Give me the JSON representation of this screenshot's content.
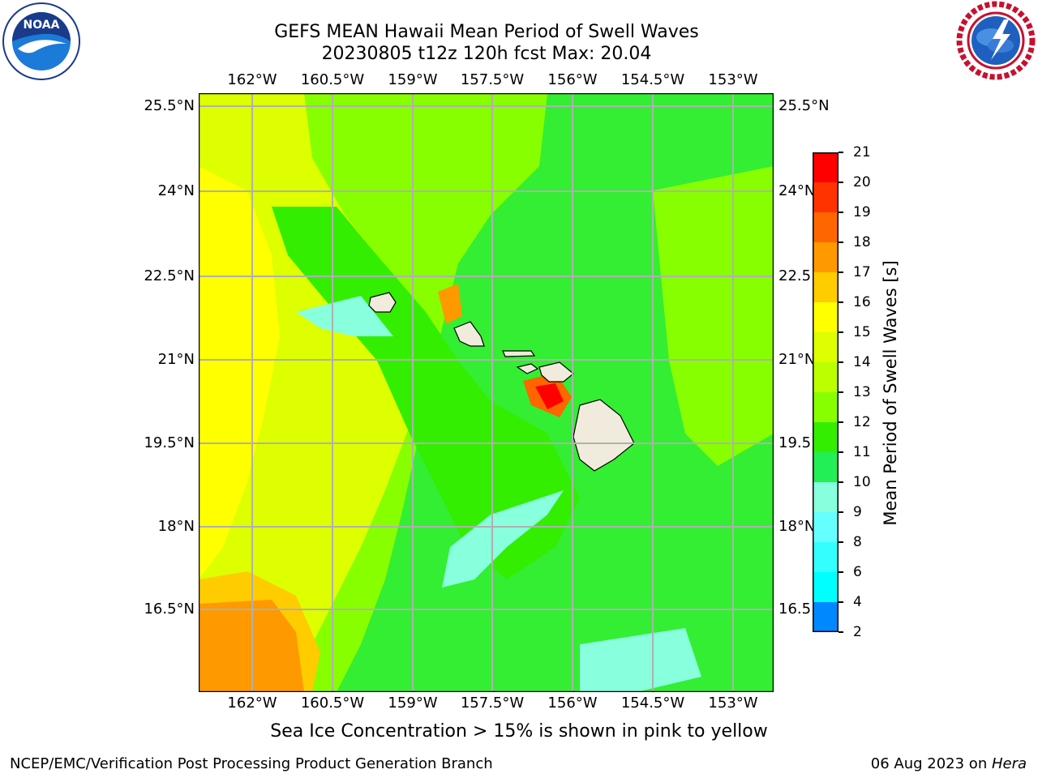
{
  "title": {
    "line1": "GEFS MEAN Hawaii Mean Period of Swell Waves",
    "line2": "20230805 t12z 120h fcst   Max: 20.04"
  },
  "logos": {
    "left": {
      "icon": "noaa-logo",
      "text": "NOAA"
    },
    "right": {
      "icon": "nws-logo"
    }
  },
  "map": {
    "lon_labels": [
      "162°W",
      "160.5°W",
      "159°W",
      "157.5°W",
      "156°W",
      "154.5°W",
      "153°W"
    ],
    "lat_labels_left": [
      "25.5°N",
      "24°N",
      "22.5°N",
      "21°N",
      "19.5°N",
      "18°N",
      "16.5°N"
    ],
    "lat_labels_right": [
      "25.5°N",
      "24°N",
      "22.5",
      "21°N",
      "19.5",
      "18°N",
      "16.5"
    ],
    "colors": {
      "background": "#33ee33",
      "gridline": "#b0b0b0",
      "land": "#f0ebdc"
    }
  },
  "colorbar": {
    "label": "Mean Period of Swell Waves [s]",
    "tick_labels": [
      "21",
      "20",
      "19",
      "18",
      "17",
      "16",
      "15",
      "14",
      "13",
      "12",
      "11",
      "10",
      "9",
      "8",
      "6",
      "4",
      "2"
    ],
    "colors": [
      "#ff0000",
      "#ff3300",
      "#ff6600",
      "#ff9900",
      "#ffcc00",
      "#ffff00",
      "#ddff00",
      "#bbff00",
      "#88ff00",
      "#33ee00",
      "#22ee55",
      "#88ffdd",
      "#66ffff",
      "#33ffff",
      "#00ffff",
      "#0088ff",
      "#0000ff"
    ]
  },
  "footer": {
    "note": "Sea Ice Concentration > 15% is shown in pink to yellow",
    "credit_left": "NCEP/EMC/Verification Post Processing Product Generation Branch",
    "credit_right_date": "06 Aug 2023 on ",
    "credit_right_host": "Hera"
  }
}
